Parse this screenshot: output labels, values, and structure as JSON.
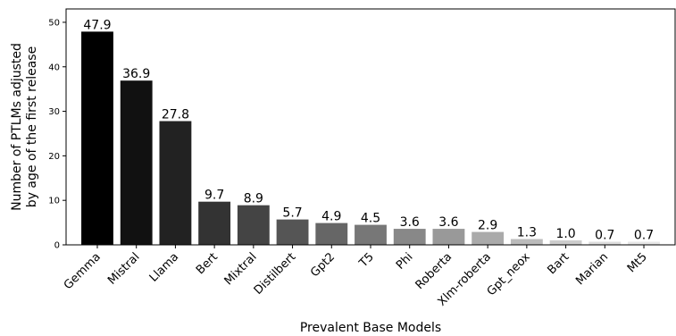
{
  "chart_data": {
    "type": "bar",
    "title": "",
    "xlabel": "Prevalent Base Models",
    "ylabel_lines": [
      "Number of PTLMs adjusted",
      "by age of the first release"
    ],
    "ylim": [
      0,
      53
    ],
    "yticks": [
      0,
      10,
      20,
      30,
      40,
      50
    ],
    "grid": false,
    "legend": "none",
    "categories": [
      "Gemma",
      "Mistral",
      "Llama",
      "Bert",
      "Mixtral",
      "Distilbert",
      "Gpt2",
      "T5",
      "Phi",
      "Roberta",
      "Xlm-roberta",
      "Gpt_neox",
      "Bart",
      "Marian",
      "Mt5"
    ],
    "values": [
      47.9,
      36.9,
      27.8,
      9.7,
      8.9,
      5.7,
      4.9,
      4.5,
      3.6,
      3.6,
      2.9,
      1.3,
      1.0,
      0.7,
      0.7
    ],
    "value_labels": [
      "47.9",
      "36.9",
      "27.8",
      "9.7",
      "8.9",
      "5.7",
      "4.9",
      "4.5",
      "3.6",
      "3.6",
      "2.9",
      "1.3",
      "1.0",
      "0.7",
      "0.7"
    ],
    "bar_colors": [
      "#000000",
      "#111111",
      "#222222",
      "#333333",
      "#444444",
      "#555555",
      "#666666",
      "#777777",
      "#888888",
      "#999999",
      "#aaaaaa",
      "#bbbbbb",
      "#cccccc",
      "#dddddd",
      "#e6e6e6"
    ]
  }
}
